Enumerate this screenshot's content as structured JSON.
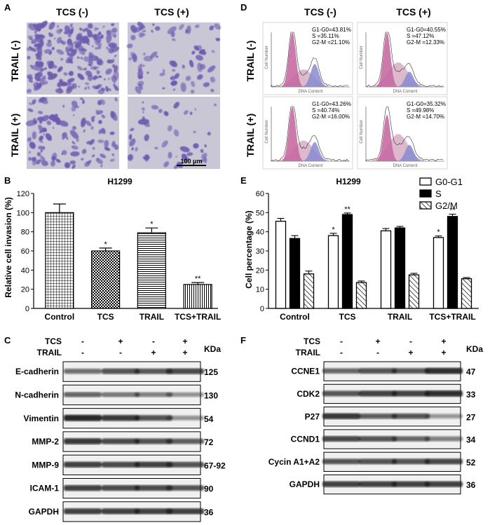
{
  "colors": {
    "stain": "#6e5bb0",
    "background_tissue": "#c9c7d6",
    "membrane": "#f2f2f2",
    "g1_peak": "#c66aa3",
    "s_peak": "#d4a7bf",
    "g2_peak": "#8a8ad0",
    "blot_bg": "#f0f0f0",
    "band": "#1e1e1e"
  },
  "panels": {
    "A": {
      "label": "A",
      "col_headers": [
        "TCS (-)",
        "TCS (+)"
      ],
      "row_headers": [
        "TRAIL (-)",
        "TRAIL (+)"
      ],
      "scale_bar": "100 μm"
    },
    "D": {
      "label": "D",
      "col_headers": [
        "TCS (-)",
        "TCS (+)"
      ],
      "row_headers": [
        "TRAIL (-)",
        "TRAIL (+)"
      ],
      "axis_x_label": "DNA Content",
      "axis_y_label": "Cell Number",
      "stats": [
        [
          "G1-G0=43.81%",
          "S =35.11%",
          "G2-M =21.10%"
        ],
        [
          "G1-G0=40.55%",
          "S =47.12%",
          "G2-M =12.33%"
        ],
        [
          "G1-G0=43.26%",
          "S =40.74%",
          "G2-M =16.00%"
        ],
        [
          "G1-G0=35.32%",
          "S =49.98%",
          "G2-M =14.70%"
        ]
      ]
    },
    "B": {
      "label": "B"
    },
    "E": {
      "label": "E"
    },
    "C": {
      "label": "C",
      "tcs_label": "TCS",
      "trail_label": "TRAIL",
      "tcs_signs": [
        "-",
        "+",
        "-",
        "+"
      ],
      "trail_signs": [
        "-",
        "-",
        "+",
        "+"
      ],
      "kda_label": "KDa",
      "proteins": [
        {
          "name": "E-cadherin",
          "kda": "125",
          "intensity": [
            0.55,
            0.75,
            0.7,
            0.8
          ]
        },
        {
          "name": "N-cadherin",
          "kda": "130",
          "intensity": [
            0.6,
            0.5,
            0.45,
            0.35
          ]
        },
        {
          "name": "Vimentin",
          "kda": "54",
          "intensity": [
            1.0,
            0.9,
            0.75,
            0.35
          ]
        },
        {
          "name": "MMP-2",
          "kda": "72",
          "intensity": [
            0.9,
            0.8,
            0.75,
            0.65
          ]
        },
        {
          "name": "MMP-9",
          "kda": "67-92",
          "intensity": [
            0.85,
            0.8,
            0.85,
            0.75
          ]
        },
        {
          "name": "ICAM-1",
          "kda": "90",
          "intensity": [
            0.85,
            0.8,
            0.8,
            0.7
          ]
        },
        {
          "name": "GAPDH",
          "kda": "36",
          "intensity": [
            0.85,
            0.85,
            0.85,
            0.85
          ]
        }
      ]
    },
    "F": {
      "label": "F",
      "tcs_label": "TCS",
      "trail_label": "TRAIL",
      "tcs_signs": [
        "-",
        "+",
        "-",
        "+"
      ],
      "trail_signs": [
        "-",
        "-",
        "+",
        "+"
      ],
      "kda_label": "KDa",
      "proteins": [
        {
          "name": "CCNE1",
          "kda": "47",
          "intensity": [
            0.6,
            0.75,
            0.7,
            0.95
          ]
        },
        {
          "name": "CDK2",
          "kda": "33",
          "intensity": [
            0.7,
            0.85,
            0.85,
            0.95
          ]
        },
        {
          "name": "P27",
          "kda": "27",
          "intensity": [
            0.9,
            0.65,
            0.7,
            0.3
          ]
        },
        {
          "name": "CCND1",
          "kda": "34",
          "intensity": [
            0.8,
            0.7,
            0.6,
            0.45
          ]
        },
        {
          "name": "Cycin A1+A2",
          "kda": "52",
          "intensity": [
            0.7,
            0.75,
            0.75,
            0.8
          ]
        },
        {
          "name": "GAPDH",
          "kda": "36",
          "intensity": [
            0.85,
            0.85,
            0.85,
            0.85
          ]
        }
      ]
    }
  },
  "chart_data": [
    {
      "panel": "B",
      "type": "bar",
      "title": "H1299",
      "xlabel": "",
      "ylabel": "Relative cell invasion (%)",
      "categories": [
        "Control",
        "TCS",
        "TRAIL",
        "TCS+TRAIL"
      ],
      "values": [
        100,
        60,
        79,
        25
      ],
      "errors": [
        9,
        3,
        5,
        2
      ],
      "significance": [
        "",
        "*",
        "*",
        "**"
      ],
      "ylim": [
        0,
        120
      ],
      "yticks": [
        0,
        20,
        40,
        60,
        80,
        100,
        120
      ]
    },
    {
      "panel": "E",
      "type": "bar",
      "title": "H1299",
      "xlabel": "",
      "ylabel": "Cell percentage (%)",
      "categories": [
        "Control",
        "TCS",
        "TRAIL",
        "TCS+TRAIL"
      ],
      "series": [
        {
          "name": "G0-G1",
          "values": [
            45.5,
            38,
            40.5,
            37
          ],
          "errors": [
            1.5,
            1.2,
            1.2,
            0.8
          ],
          "significance": [
            "",
            "*",
            "",
            "*"
          ]
        },
        {
          "name": "S",
          "values": [
            36.5,
            49,
            42,
            48
          ],
          "errors": [
            1.5,
            0.8,
            0.8,
            1.2
          ],
          "significance": [
            "",
            "**",
            "",
            "**"
          ]
        },
        {
          "name": "G2/M",
          "values": [
            18,
            13.5,
            17.5,
            15.5
          ],
          "errors": [
            1.5,
            0.8,
            0.8,
            0.6
          ],
          "significance": [
            "",
            "",
            "",
            ""
          ]
        }
      ],
      "legend_position": "top-right",
      "ylim": [
        0,
        60
      ],
      "yticks": [
        0,
        10,
        20,
        30,
        40,
        50,
        60
      ]
    }
  ]
}
